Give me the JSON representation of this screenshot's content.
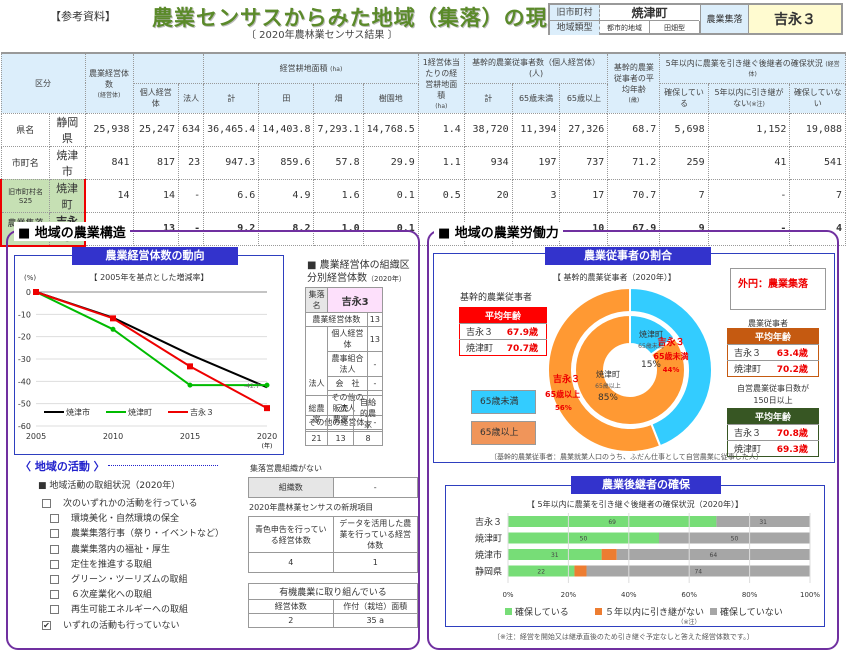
{
  "header": {
    "ref": "【参考資料】",
    "title": "農業センサスからみた地域（集落）の現状",
    "subtitle": "〔 2020年農林業センサス結果 〕",
    "old_municipality_label": "旧市町村",
    "old_municipality": "焼津町",
    "region_type_label": "地域類型",
    "region_type_1": "都市的地域",
    "region_type_2": "田畑型",
    "settlement_label": "農業集落",
    "settlement": "吉永３"
  },
  "main_table": {
    "headers": {
      "category": "区分",
      "entities": "農業経営体数",
      "entities_unit": "(経営体)",
      "individual": "個人経営体",
      "corp": "法人",
      "area_group": "経営耕地面積",
      "area_unit": "(ha)",
      "area_total": "計",
      "paddy": "田",
      "field": "畑",
      "orchard": "樹園地",
      "per_entity": "1経営体当たりの経営耕地面積",
      "per_unit": "(ha)",
      "workers_group": "基幹的農業従事者数（個人経営体）",
      "workers_unit": "(人)",
      "w_total": "計",
      "under65": "65歳未満",
      "over65": "65歳以上",
      "avg_age": "基幹的農業従事者の平均年齢",
      "age_unit": "(歳)",
      "succ_group": "5年以内に農業を引き継ぐ後継者の確保状況",
      "succ_unit": "(経営体)",
      "secured": "確保している",
      "no_succ": "5年以内に引き継がない",
      "note": "(※注)",
      "not_secured": "確保していない"
    },
    "rows": [
      {
        "label": "県名",
        "name": "静岡県",
        "vals": [
          "25,938",
          "25,247",
          "634",
          "36,465.4",
          "14,403.8",
          "7,293.1",
          "14,768.5",
          "1.4",
          "38,720",
          "11,394",
          "27,326",
          "68.7",
          "5,698",
          "1,152",
          "19,088"
        ]
      },
      {
        "label": "市町名",
        "name": "焼津市",
        "vals": [
          "841",
          "817",
          "23",
          "947.3",
          "859.6",
          "57.8",
          "29.9",
          "1.1",
          "934",
          "197",
          "737",
          "71.2",
          "259",
          "41",
          "541"
        ]
      },
      {
        "label": "旧市町村名 S25",
        "name": "焼津町",
        "vals": [
          "14",
          "14",
          "-",
          "6.6",
          "4.9",
          "1.6",
          "0.1",
          "0.5",
          "20",
          "3",
          "17",
          "70.7",
          "7",
          "-",
          "7"
        ]
      },
      {
        "label": "農業集落名",
        "name": "吉永３",
        "vals": [
          "13",
          "13",
          "-",
          "9.2",
          "8.2",
          "1.0",
          "0.1",
          "0.7",
          "18",
          "8",
          "10",
          "67.9",
          "9",
          "-",
          "4"
        ]
      }
    ]
  },
  "structure": {
    "section_title": "■ 地域の農業構造",
    "chart_title": "農業経営体数の動向",
    "org": {
      "title1": "■ 農業経営体の組織区",
      "title2": "分別経営体数",
      "year": "（2020年）",
      "settlement_label": "集落名",
      "settlement": "吉永3",
      "rows": [
        {
          "label": "農業経営体数",
          "value": "13"
        },
        {
          "label": "個人経営体",
          "value": "13"
        },
        {
          "label": "農事組合法人",
          "value": "-"
        },
        {
          "label": "会　社",
          "value": "-"
        },
        {
          "label": "その他の法人",
          "value": "-"
        },
        {
          "label": "その他の経営体",
          "value": "-"
        }
      ],
      "corp_label": "法人"
    },
    "farms": {
      "headers": [
        "総農家",
        "販売農家",
        "自給的農家"
      ],
      "values": [
        "21",
        "13",
        "8"
      ]
    },
    "activity": {
      "title": "〈 地域の活動 〉",
      "subtitle": "■ 地域活動の取組状況（2020年）",
      "items": [
        {
          "label": "次のいずれかの活動を行っている",
          "checked": false,
          "indent": 0
        },
        {
          "label": "環境美化・自然環境の保全",
          "checked": false,
          "indent": 1
        },
        {
          "label": "農業集落行事（祭り・イベントなど）",
          "checked": false,
          "indent": 1
        },
        {
          "label": "農業集落内の福祉・厚生",
          "checked": false,
          "indent": 1
        },
        {
          "label": "定住を推進する取組",
          "checked": false,
          "indent": 1
        },
        {
          "label": "グリーン・ツーリズムの取組",
          "checked": false,
          "indent": 1
        },
        {
          "label": "６次産業化への取組",
          "checked": false,
          "indent": 1
        },
        {
          "label": "再生可能エネルギーへの取組",
          "checked": false,
          "indent": 1
        },
        {
          "label": "いずれの活動も行っていない",
          "checked": true,
          "indent": 0
        }
      ]
    },
    "org_farming": {
      "note": "集落営農組織がない",
      "count_label": "組織数",
      "count": "-"
    },
    "new_items": {
      "title": "2020年農林業センサスの新規項目",
      "h1": "青色申告を行っている経営体数",
      "h2": "データを活用した農業を行っている経営体数",
      "v1": "4",
      "v2": "1"
    },
    "organic": {
      "title": "有機農業に取り組んでいる",
      "h1": "経営体数",
      "h2": "作付（栽培）面積",
      "v1": "2",
      "v2": "35 a"
    }
  },
  "labor": {
    "section_title": "■ 地域の農業労働力",
    "chart_title": "農業従事者の割合",
    "outer_note": "外円：農業集落",
    "core_label": "基幹的農業従事者",
    "avg_age_label": "平均年齢",
    "core_ages": [
      {
        "name": "吉永３",
        "age": "67.9歳"
      },
      {
        "name": "焼津町",
        "age": "70.7歳"
      }
    ],
    "workers_label": "農業従事者",
    "workers_ages": [
      {
        "name": "吉永３",
        "age": "63.4歳"
      },
      {
        "name": "焼津町",
        "age": "70.2歳"
      }
    ],
    "days_label1": "自営農業従事日数が",
    "days_label2": "150日以上",
    "days_ages": [
      {
        "name": "吉永３",
        "age": "70.8歳"
      },
      {
        "name": "焼津町",
        "age": "69.3歳"
      }
    ],
    "legend": [
      "65歳未満",
      "65歳以上"
    ],
    "footnote": "〔基幹的農業従事者：農業就業人口のうち、ふだん仕事として自営農業に従事した人〕",
    "succ_title": "農業後継者の確保",
    "succ_note": "〔※注：経営を開始又は継承直後のため引き継ぐ予定なしと答えた経営体数です。〕"
  },
  "chart_data": [
    {
      "type": "line",
      "title": "【 2005年を基点とした増減率】",
      "ylabel": "(%)",
      "xlabel": "(年)",
      "x": [
        2005,
        2010,
        2015,
        2020
      ],
      "ylim": [
        -60,
        0
      ],
      "yticks": [
        0,
        -10,
        -20,
        -30,
        -40,
        -50,
        -60
      ],
      "grid": true,
      "legend_position": "bottom-inside",
      "series": [
        {
          "name": "焼津市",
          "color": "#000000",
          "values": [
            0,
            -11.5,
            -28,
            -42.7
          ]
        },
        {
          "name": "焼津町",
          "color": "#00bb00",
          "values": [
            0,
            -16.7,
            -41.7,
            -41.7
          ]
        },
        {
          "name": "吉永３",
          "color": "#ee0000",
          "values": [
            0,
            -11.8,
            -33.3,
            -52
          ]
        }
      ],
      "annotations": [
        "-42.7",
        "-41.7"
      ]
    },
    {
      "type": "pie",
      "title": "【 基幹的農業従事者（2020年）】",
      "subtitle": "外円：農業集落",
      "series": [
        {
          "name": "吉永３（外円）",
          "labels": [
            "65歳未満",
            "65歳以上"
          ],
          "values": [
            44,
            56
          ]
        },
        {
          "name": "焼津町（内円）",
          "labels": [
            "65歳未満",
            "65歳以上"
          ],
          "values": [
            15,
            85
          ]
        }
      ],
      "colors": [
        "#33ccff",
        "#ff9933"
      ]
    },
    {
      "type": "bar",
      "orientation": "horizontal-stacked",
      "title": "【 5年以内に農業を引き継ぐ後継者の確保状況（2020年）】",
      "categories": [
        "吉永３",
        "焼津町",
        "焼津市",
        "静岡県"
      ],
      "series": [
        {
          "name": "確保している",
          "color": "#77dd77",
          "values": [
            69,
            50,
            31,
            22
          ]
        },
        {
          "name": "５年以内に引き継がない",
          "color": "#ed7d31",
          "values": [
            0,
            0,
            5,
            4
          ]
        },
        {
          "name": "確保していない",
          "color": "#a6a6a6",
          "values": [
            31,
            50,
            64,
            74
          ]
        }
      ],
      "xticks": [
        "0%",
        "20%",
        "40%",
        "60%",
        "80%",
        "100%"
      ],
      "legend_note": "（※注）"
    }
  ]
}
